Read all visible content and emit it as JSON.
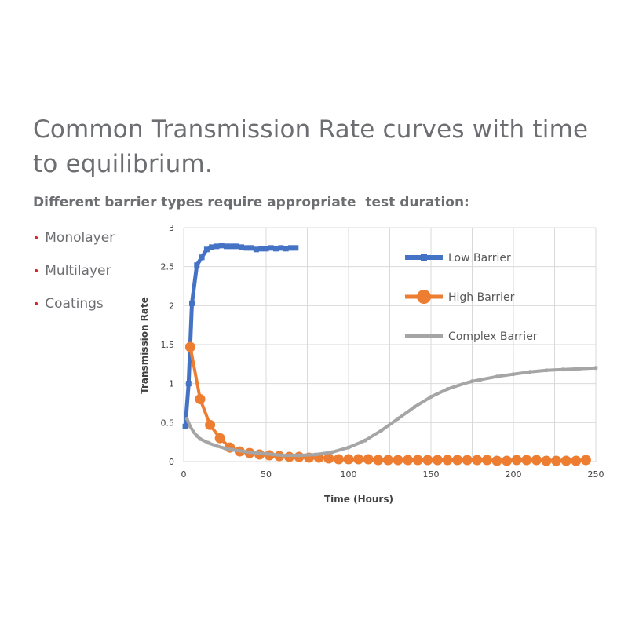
{
  "heading": {
    "title": "Common Transmission Rate curves with time to equilibrium.",
    "subtitle": "Different barrier types require appropriate  test duration:"
  },
  "bullets": [
    {
      "label": "Monolayer"
    },
    {
      "label": "Multilayer"
    },
    {
      "label": "Coatings"
    }
  ],
  "colors": {
    "low": "#4472c4",
    "high": "#ed7d31",
    "complex": "#a5a5a5",
    "bullet": "#d7262d",
    "grid": "#d9d9d9"
  },
  "chart_data": {
    "type": "line",
    "xlabel": "Time (Hours)",
    "ylabel": "Transmission Rate",
    "xlim": [
      0,
      250
    ],
    "ylim": [
      0,
      3
    ],
    "xticks": [
      "0",
      "50",
      "100",
      "150",
      "200",
      "250"
    ],
    "yticks": [
      "0",
      "0.5",
      "1",
      "1.5",
      "2",
      "2.5",
      "3"
    ],
    "grid": true,
    "legend_position": "top-right",
    "series": [
      {
        "name": "Low Barrier",
        "marker": "square",
        "x": [
          1,
          3,
          5,
          8,
          11,
          14,
          17,
          20,
          23,
          26,
          29,
          32,
          35,
          38,
          41,
          44,
          47,
          50,
          53,
          56,
          59,
          62,
          65,
          68
        ],
        "y": [
          0.45,
          1.0,
          2.03,
          2.52,
          2.62,
          2.72,
          2.75,
          2.76,
          2.77,
          2.76,
          2.76,
          2.76,
          2.75,
          2.74,
          2.74,
          2.72,
          2.73,
          2.73,
          2.74,
          2.73,
          2.74,
          2.73,
          2.74,
          2.74
        ]
      },
      {
        "name": "High Barrier",
        "marker": "circle",
        "x": [
          4,
          10,
          16,
          22,
          28,
          34,
          40,
          46,
          52,
          58,
          64,
          70,
          76,
          82,
          88,
          94,
          100,
          106,
          112,
          118,
          124,
          130,
          136,
          142,
          148,
          154,
          160,
          166,
          172,
          178,
          184,
          190,
          196,
          202,
          208,
          214,
          220,
          226,
          232,
          238,
          244
        ],
        "y": [
          1.47,
          0.8,
          0.47,
          0.3,
          0.18,
          0.13,
          0.11,
          0.09,
          0.08,
          0.07,
          0.06,
          0.06,
          0.05,
          0.05,
          0.04,
          0.03,
          0.03,
          0.03,
          0.03,
          0.02,
          0.02,
          0.02,
          0.02,
          0.02,
          0.02,
          0.02,
          0.02,
          0.02,
          0.02,
          0.02,
          0.02,
          0.01,
          0.01,
          0.02,
          0.02,
          0.02,
          0.01,
          0.01,
          0.01,
          0.01,
          0.02
        ]
      },
      {
        "name": "Complex Barrier",
        "marker": "circle-small",
        "x": [
          2,
          4,
          6,
          8,
          10,
          15,
          20,
          25,
          30,
          40,
          50,
          60,
          70,
          80,
          90,
          100,
          110,
          120,
          130,
          140,
          150,
          160,
          170,
          175,
          180,
          190,
          200,
          210,
          220,
          230,
          240,
          250
        ],
        "y": [
          0.55,
          0.45,
          0.38,
          0.33,
          0.29,
          0.24,
          0.2,
          0.17,
          0.15,
          0.12,
          0.1,
          0.08,
          0.08,
          0.09,
          0.12,
          0.18,
          0.27,
          0.4,
          0.55,
          0.7,
          0.83,
          0.93,
          1.0,
          1.03,
          1.05,
          1.09,
          1.12,
          1.15,
          1.17,
          1.18,
          1.19,
          1.2
        ]
      }
    ]
  }
}
